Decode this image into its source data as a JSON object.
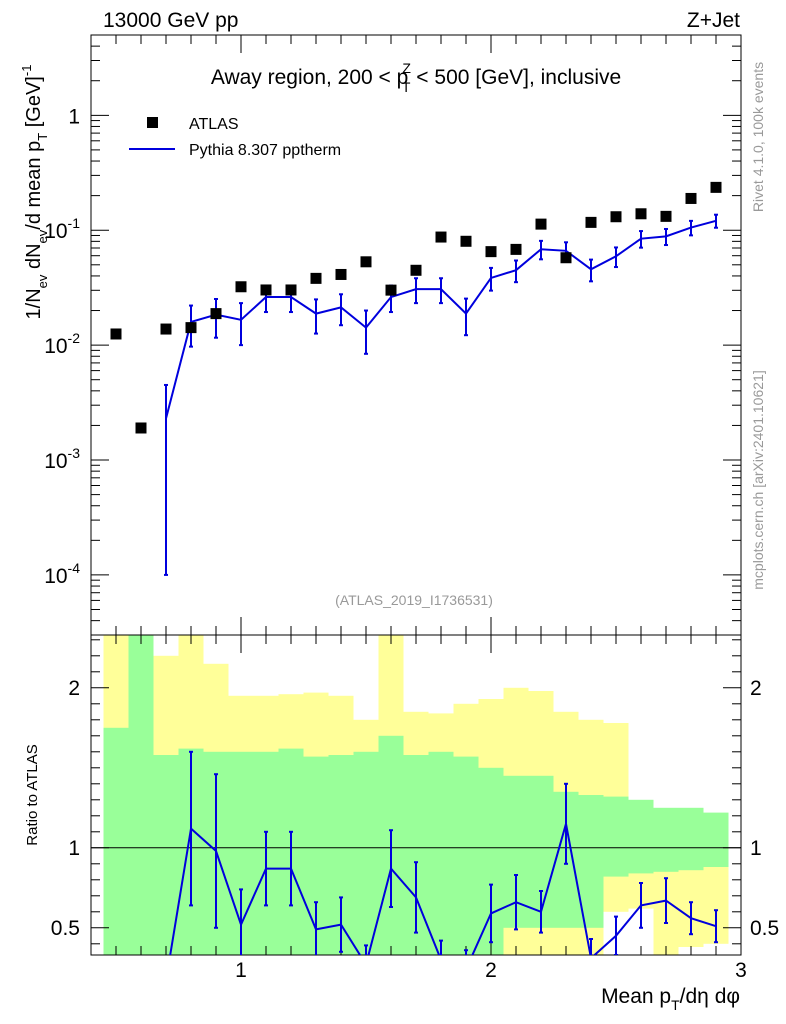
{
  "header": {
    "energy_label": "13000 GeV pp",
    "process_label": "Z+Jet"
  },
  "side_labels": {
    "rivet": "Rivet 4.1.0,  100k events",
    "mcplots": "mcplots.cern.ch [arXiv:2401.10621]"
  },
  "plot_title": {
    "before": "Away region, 200 < p",
    "sup": "Z",
    "sub": "T",
    "after": " < 500 [GeV], inclusive"
  },
  "analysis_id": "(ATLAS_2019_I1736531)",
  "legend": {
    "data_label": "ATLAS",
    "mc_label": "Pythia 8.307 pptherm"
  },
  "colors": {
    "mc_line": "#0000dd",
    "band_inner": "#99ff99",
    "band_outer": "#ffff99",
    "data_marker": "#000000"
  },
  "chart_data": [
    {
      "type": "scatter",
      "panel": "main",
      "title": "Away region, 200 < pT^Z < 500 [GeV], inclusive",
      "ylabel": "1/N_ev dN_ev/d mean p_T [GeV]^-1",
      "yscale": "log",
      "xlim": [
        0.4,
        3.0
      ],
      "ylim": [
        3e-05,
        5
      ],
      "y_ticks": [
        {
          "value": 0.0001,
          "mant": "10",
          "exp": "-4"
        },
        {
          "value": 0.001,
          "mant": "10",
          "exp": "-3"
        },
        {
          "value": 0.01,
          "mant": "10",
          "exp": "-2"
        },
        {
          "value": 0.1,
          "mant": "10",
          "exp": "-1"
        },
        {
          "value": 1,
          "mant": "1",
          "exp": ""
        }
      ],
      "series": [
        {
          "name": "ATLAS",
          "style": "marker",
          "x": [
            0.5,
            0.6,
            0.7,
            0.8,
            0.9,
            1.0,
            1.1,
            1.2,
            1.3,
            1.4,
            1.5,
            1.6,
            1.7,
            1.8,
            1.9,
            2.0,
            2.1,
            2.2,
            2.3,
            2.4,
            2.5,
            2.6,
            2.7,
            2.8,
            2.9
          ],
          "y": [
            0.0125,
            0.0019,
            0.0138,
            0.0142,
            0.0188,
            0.0322,
            0.0302,
            0.0302,
            0.0381,
            0.0412,
            0.0531,
            0.0301,
            0.0448,
            0.0872,
            0.0801,
            0.0651,
            0.0681,
            0.113,
            0.0576,
            0.117,
            0.131,
            0.139,
            0.132,
            0.189,
            0.236
          ]
        },
        {
          "name": "Pythia 8.307 pptherm",
          "style": "line",
          "x": [
            0.7,
            0.8,
            0.9,
            1.0,
            1.1,
            1.2,
            1.3,
            1.4,
            1.5,
            1.6,
            1.7,
            1.8,
            1.9,
            2.0,
            2.1,
            2.2,
            2.3,
            2.4,
            2.5,
            2.6,
            2.7,
            2.8,
            2.9
          ],
          "y": [
            0.0023,
            0.0159,
            0.0184,
            0.0166,
            0.0262,
            0.0262,
            0.0188,
            0.0213,
            0.0142,
            0.0262,
            0.0307,
            0.0307,
            0.0188,
            0.0384,
            0.0449,
            0.0683,
            0.0662,
            0.0457,
            0.0593,
            0.0844,
            0.0884,
            0.1054,
            0.1208
          ],
          "err": [
            0.0022,
            0.0062,
            0.0068,
            0.0066,
            0.0068,
            0.0068,
            0.0062,
            0.0064,
            0.0058,
            0.0068,
            0.0075,
            0.0075,
            0.0066,
            0.0086,
            0.0096,
            0.0125,
            0.0123,
            0.0098,
            0.0115,
            0.0139,
            0.0141,
            0.0152,
            0.0157
          ]
        }
      ]
    },
    {
      "type": "line",
      "panel": "ratio",
      "ylabel": "Ratio to ATLAS",
      "xlabel": "Mean p_T/dη dφ",
      "xlim": [
        0.4,
        3.0
      ],
      "ylim": [
        0.33,
        2.33
      ],
      "x_ticks": [
        1,
        2,
        3
      ],
      "y_ticks": [
        0.5,
        1,
        2
      ],
      "reference_line": 1,
      "bands": {
        "bin_left": [
          0.45,
          0.55,
          0.65,
          0.75,
          0.85,
          0.95,
          1.05,
          1.15,
          1.25,
          1.35,
          1.45,
          1.55,
          1.65,
          1.75,
          1.85,
          1.95,
          2.05,
          2.15,
          2.25,
          2.35,
          2.45,
          2.55,
          2.65,
          2.75,
          2.85
        ],
        "bin_right": [
          0.55,
          0.65,
          0.75,
          0.85,
          0.95,
          1.05,
          1.15,
          1.25,
          1.35,
          1.45,
          1.55,
          1.65,
          1.75,
          1.85,
          1.95,
          2.05,
          2.15,
          2.25,
          2.35,
          2.45,
          2.55,
          2.65,
          2.75,
          2.85,
          2.95
        ],
        "inner_lo": [
          0.33,
          0.33,
          0.33,
          0.33,
          0.33,
          0.33,
          0.33,
          0.33,
          0.33,
          0.33,
          0.33,
          0.33,
          0.33,
          0.33,
          0.33,
          0.33,
          0.5,
          0.5,
          0.5,
          0.5,
          0.82,
          0.84,
          0.85,
          0.86,
          0.88
        ],
        "inner_hi": [
          1.75,
          2.33,
          1.58,
          1.62,
          1.6,
          1.6,
          1.6,
          1.62,
          1.57,
          1.58,
          1.6,
          1.7,
          1.58,
          1.6,
          1.57,
          1.5,
          1.45,
          1.45,
          1.35,
          1.33,
          1.32,
          1.3,
          1.25,
          1.25,
          1.22
        ],
        "outer_lo": [
          0.33,
          0.33,
          0.33,
          0.33,
          0.33,
          0.33,
          0.55,
          0.55,
          0.55,
          0.5,
          0.33,
          0.66,
          0.66,
          0.33,
          0.33,
          0.33,
          0.33,
          0.33,
          0.33,
          0.33,
          0.6,
          0.62,
          0.33,
          0.38,
          0.4
        ],
        "outer_hi": [
          2.33,
          2.33,
          2.2,
          2.33,
          2.15,
          1.95,
          1.95,
          1.96,
          1.97,
          1.95,
          1.8,
          2.33,
          1.85,
          1.84,
          1.9,
          1.93,
          2.0,
          1.98,
          1.85,
          1.8,
          1.78,
          1.15,
          1.15,
          1.15,
          1.12
        ]
      },
      "series": [
        {
          "name": "Pythia 8.307 pptherm / ATLAS",
          "x": [
            0.7,
            0.8,
            0.9,
            1.0,
            1.1,
            1.2,
            1.3,
            1.4,
            1.5,
            1.6,
            1.7,
            1.8,
            1.9,
            2.0,
            2.1,
            2.2,
            2.3,
            2.4,
            2.5,
            2.6,
            2.7,
            2.8,
            2.9
          ],
          "y": [
            0.17,
            1.12,
            0.98,
            0.52,
            0.87,
            0.87,
            0.49,
            0.52,
            0.27,
            0.87,
            0.69,
            0.3,
            0.24,
            0.59,
            0.66,
            0.6,
            1.15,
            0.31,
            0.45,
            0.64,
            0.67,
            0.56,
            0.51
          ],
          "err": [
            0.0,
            0.48,
            0.48,
            0.22,
            0.23,
            0.23,
            0.17,
            0.17,
            0.12,
            0.24,
            0.22,
            0.12,
            0.12,
            0.18,
            0.17,
            0.13,
            0.25,
            0.12,
            0.12,
            0.14,
            0.14,
            0.1,
            0.1
          ]
        }
      ]
    }
  ]
}
